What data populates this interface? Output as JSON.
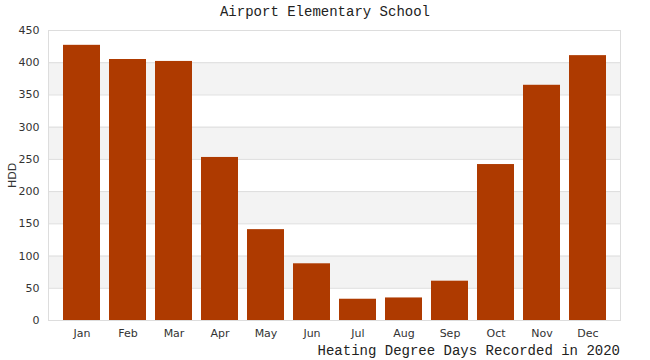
{
  "chart_data": {
    "type": "bar",
    "title": "Airport Elementary School",
    "subtitle": "Heating Degree Days Recorded in 2020",
    "y_label": "HDD",
    "categories": [
      "Jan",
      "Feb",
      "Mar",
      "Apr",
      "May",
      "Jun",
      "Jul",
      "Aug",
      "Sep",
      "Oct",
      "Nov",
      "Dec"
    ],
    "values": [
      427,
      405,
      402,
      253,
      141,
      88,
      33,
      35,
      61,
      242,
      365,
      411
    ],
    "color": "#ae3a00",
    "ylim": [
      0,
      450
    ],
    "yticks": [
      0,
      50,
      100,
      150,
      200,
      250,
      300,
      350,
      400,
      450
    ],
    "grid": true
  }
}
